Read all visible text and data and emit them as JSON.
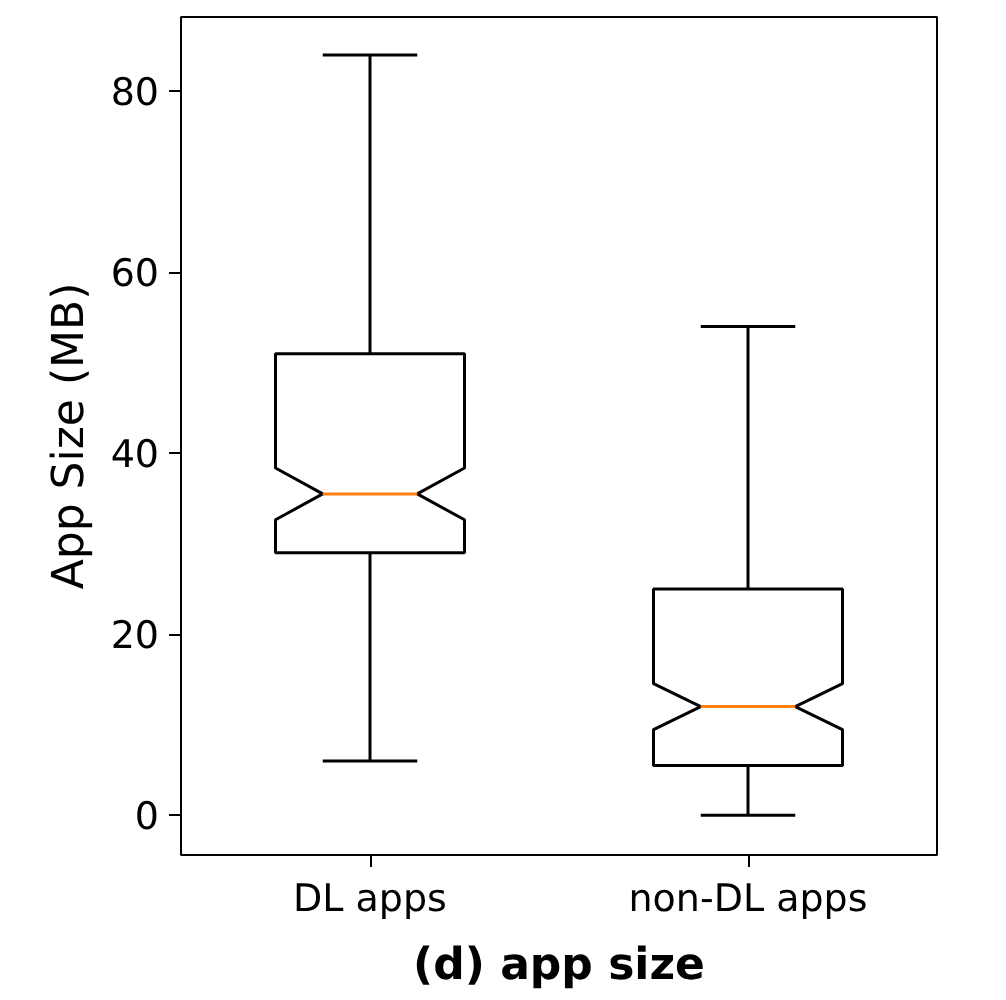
{
  "chart_data": {
    "type": "box",
    "title": "(d) app size",
    "ylabel": "App Size (MB)",
    "categories": [
      "DL apps",
      "non-DL apps"
    ],
    "boxes": [
      {
        "low": 6,
        "q1": 29,
        "median": 35.5,
        "q3": 51,
        "high": 84
      },
      {
        "low": 0,
        "q1": 5.5,
        "median": 12,
        "q3": 25,
        "high": 54
      }
    ],
    "ylim": [
      -4.4,
      88.2
    ],
    "yticks": [
      0,
      20,
      40,
      60,
      80
    ],
    "grid": false
  }
}
